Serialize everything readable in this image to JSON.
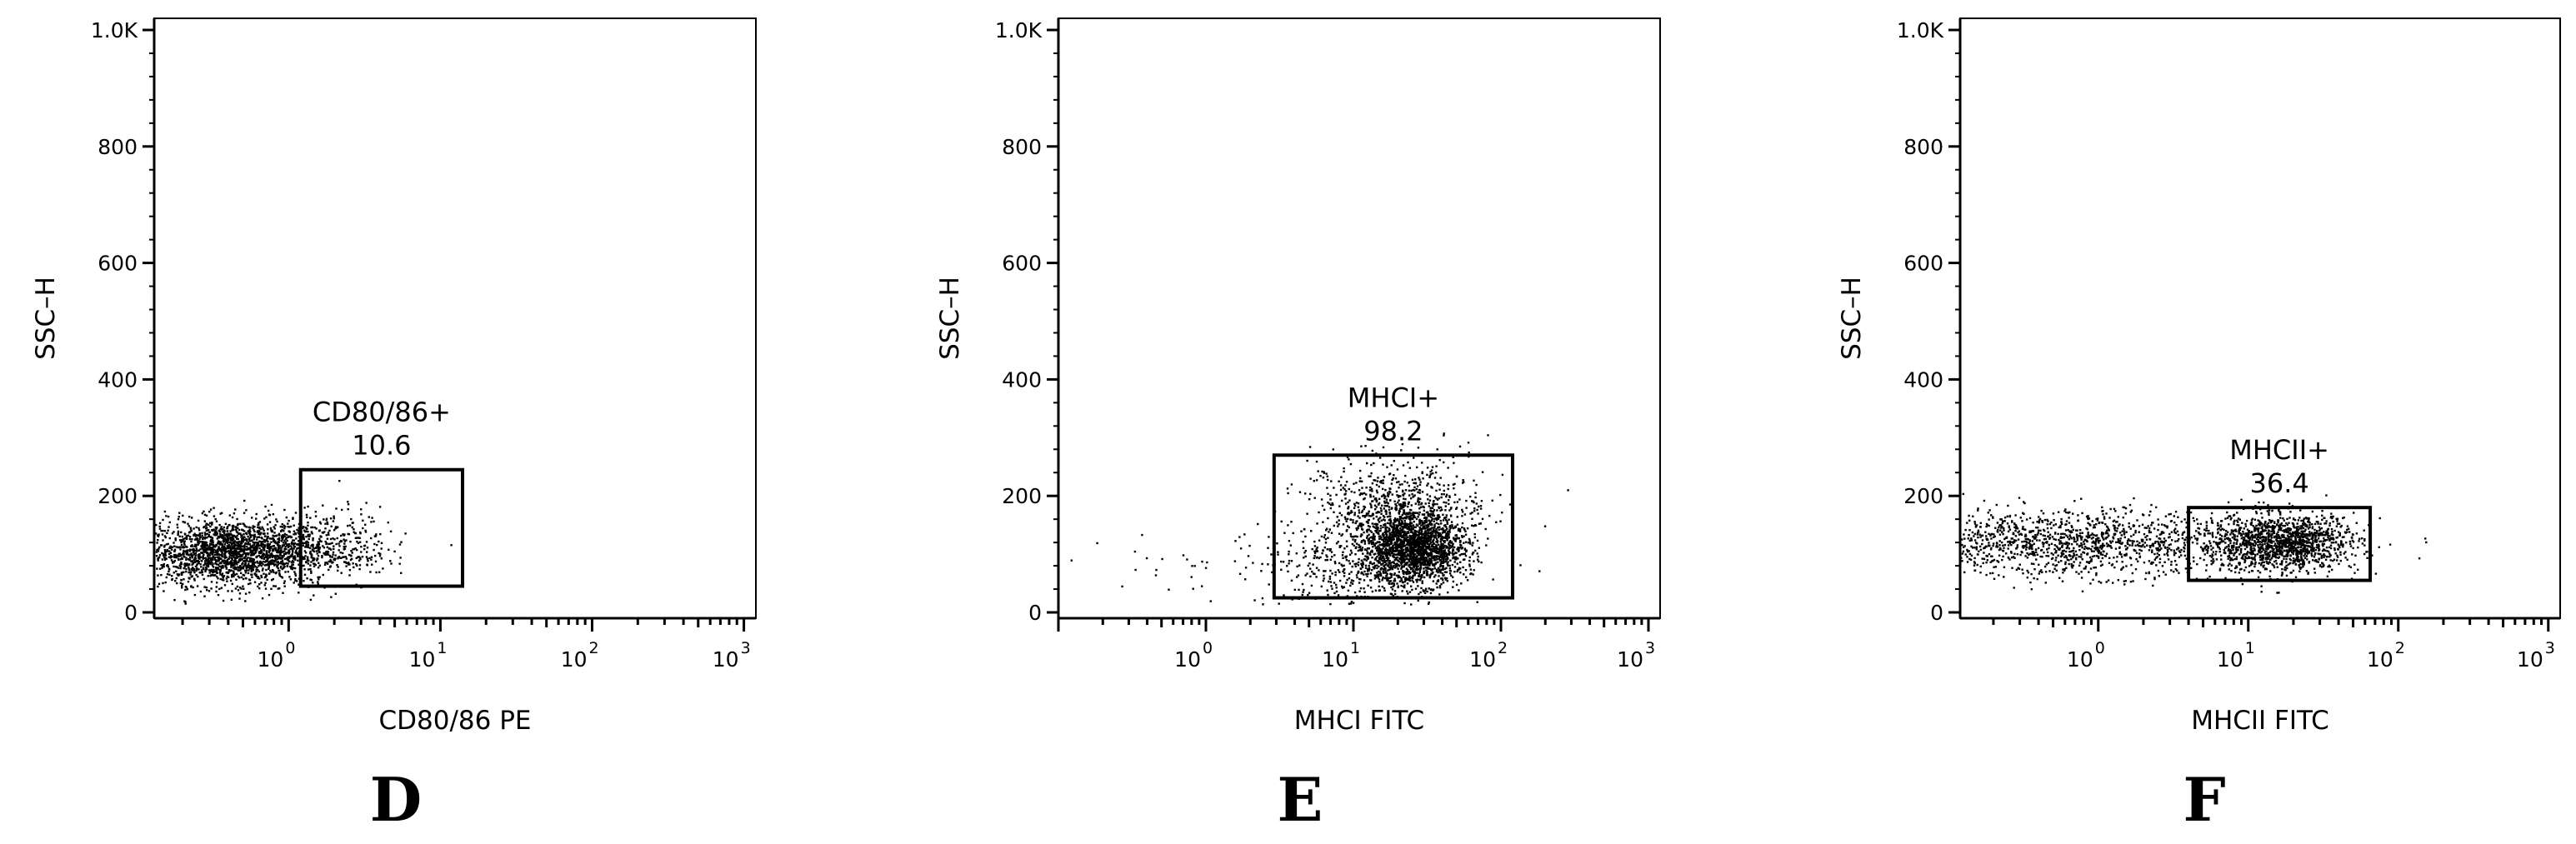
{
  "chart_data": [
    {
      "type": "scatter",
      "panel_label": "D",
      "xlabel": "CD80/86 PE",
      "ylabel": "SSC–H",
      "x_scale": "log",
      "xlim": [
        0.13,
        1200
      ],
      "ylim": [
        -10,
        1020
      ],
      "x_ticks": [
        {
          "value": 1,
          "exp": "0"
        },
        {
          "value": 10,
          "exp": "1"
        },
        {
          "value": 100,
          "exp": "2"
        },
        {
          "value": 1000,
          "exp": "3"
        }
      ],
      "y_ticks": [
        {
          "value": 0,
          "label": "0"
        },
        {
          "value": 200,
          "label": "200"
        },
        {
          "value": 400,
          "label": "400"
        },
        {
          "value": 600,
          "label": "600"
        },
        {
          "value": 800,
          "label": "800"
        },
        {
          "value": 1000,
          "label": "1.0K"
        }
      ],
      "gate": {
        "name": "CD80/86+",
        "value": "10.6",
        "x_range": [
          1.2,
          14
        ],
        "y_range": [
          45,
          245
        ]
      },
      "point_color": "#000000",
      "clusters": [
        {
          "x_center": 0.42,
          "x_spread_log": 0.3,
          "y_center": 105,
          "y_spread": 28,
          "count": 2200
        },
        {
          "x_center": 1.8,
          "x_spread_log": 0.2,
          "y_center": 120,
          "y_spread": 30,
          "count": 260
        },
        {
          "x_center": 4.0,
          "x_spread_log": 0.18,
          "y_center": 125,
          "y_spread": 30,
          "count": 30
        }
      ]
    },
    {
      "type": "scatter",
      "panel_label": "E",
      "xlabel": "MHCI FITC",
      "ylabel": "SSC–H",
      "x_scale": "log",
      "xlim": [
        0.1,
        1200
      ],
      "ylim": [
        -10,
        1020
      ],
      "x_ticks": [
        {
          "value": 1,
          "exp": "0"
        },
        {
          "value": 10,
          "exp": "1"
        },
        {
          "value": 100,
          "exp": "2"
        },
        {
          "value": 1000,
          "exp": "3"
        }
      ],
      "y_ticks": [
        {
          "value": 0,
          "label": "0"
        },
        {
          "value": 200,
          "label": "200"
        },
        {
          "value": 400,
          "label": "400"
        },
        {
          "value": 600,
          "label": "600"
        },
        {
          "value": 800,
          "label": "800"
        },
        {
          "value": 1000,
          "label": "1.0K"
        }
      ],
      "gate": {
        "name": "MHCI+",
        "value": "98.2",
        "x_range": [
          2.9,
          120
        ],
        "y_range": [
          25,
          270
        ]
      },
      "point_color": "#000000",
      "clusters": [
        {
          "x_center": 25,
          "x_spread_log": 0.17,
          "y_center": 110,
          "y_spread": 30,
          "count": 1900
        },
        {
          "x_center": 20,
          "x_spread_log": 0.3,
          "y_center": 175,
          "y_spread": 45,
          "count": 800
        },
        {
          "x_center": 8,
          "x_spread_log": 0.3,
          "y_center": 80,
          "y_spread": 35,
          "count": 300
        },
        {
          "x_center": 0.5,
          "x_spread_log": 0.35,
          "y_center": 70,
          "y_spread": 25,
          "count": 22
        }
      ]
    },
    {
      "type": "scatter",
      "panel_label": "F",
      "xlabel": "MHCII FITC",
      "ylabel": "SSC–H",
      "x_scale": "log",
      "xlim": [
        0.12,
        1200
      ],
      "ylim": [
        -10,
        1020
      ],
      "x_ticks": [
        {
          "value": 1,
          "exp": "0"
        },
        {
          "value": 10,
          "exp": "1"
        },
        {
          "value": 100,
          "exp": "2"
        },
        {
          "value": 1000,
          "exp": "3"
        }
      ],
      "y_ticks": [
        {
          "value": 0,
          "label": "0"
        },
        {
          "value": 200,
          "label": "200"
        },
        {
          "value": 400,
          "label": "400"
        },
        {
          "value": 600,
          "label": "600"
        },
        {
          "value": 800,
          "label": "800"
        },
        {
          "value": 1000,
          "label": "1.0K"
        }
      ],
      "gate": {
        "name": "MHCII+",
        "value": "36.4",
        "x_range": [
          4,
          65
        ],
        "y_range": [
          55,
          180
        ]
      },
      "point_color": "#000000",
      "clusters": [
        {
          "x_center": 0.6,
          "x_spread_log": 0.55,
          "y_center": 120,
          "y_spread": 28,
          "count": 1300
        },
        {
          "x_center": 15,
          "x_spread_log": 0.28,
          "y_center": 120,
          "y_spread": 25,
          "count": 1100
        },
        {
          "x_center": 20,
          "x_spread_log": 0.15,
          "y_center": 125,
          "y_spread": 22,
          "count": 400
        }
      ]
    }
  ]
}
